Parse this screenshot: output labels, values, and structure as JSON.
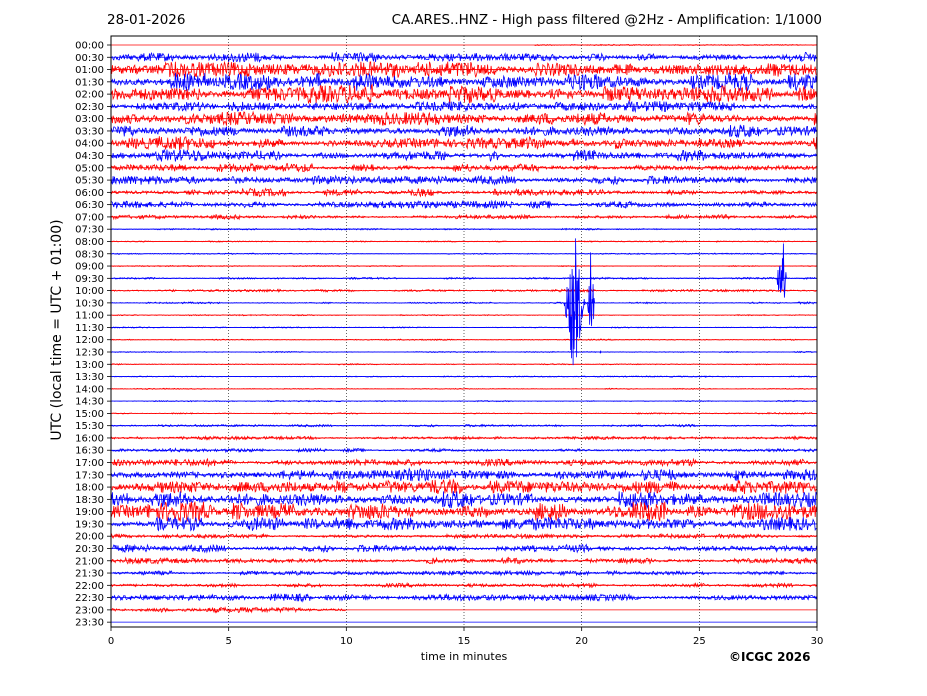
{
  "header": {
    "date": "28-01-2026",
    "title": "CA.ARES..HNZ - High pass filtered @2Hz - Amplification: 1/1000"
  },
  "footer": {
    "copyright": "©ICGC 2026"
  },
  "chart_data": {
    "type": "line",
    "title": "CA.ARES..HNZ - High pass filtered @2Hz - Amplification: 1/1000",
    "xlabel": "time in minutes",
    "ylabel": "UTC (local time = UTC + 01:00)",
    "xlim": [
      0,
      30
    ],
    "x_ticks": [
      0,
      5,
      10,
      15,
      20,
      25,
      30
    ],
    "grid": "vertical dotted lines at x ticks",
    "trace_colors": [
      "#ff0000",
      "#0000ff"
    ],
    "rows": [
      {
        "label": "00:00",
        "noise": 0.5,
        "start": 18
      },
      {
        "label": "00:30",
        "noise": 3.5
      },
      {
        "label": "01:00",
        "noise": 5.5
      },
      {
        "label": "01:30",
        "noise": 6
      },
      {
        "label": "02:00",
        "noise": 6
      },
      {
        "label": "02:30",
        "noise": 3.5
      },
      {
        "label": "03:00",
        "noise": 4.5
      },
      {
        "label": "03:30",
        "noise": 4.5
      },
      {
        "label": "04:00",
        "noise": 4.5
      },
      {
        "label": "04:30",
        "noise": 4
      },
      {
        "label": "05:00",
        "noise": 3
      },
      {
        "label": "05:30",
        "noise": 3
      },
      {
        "label": "06:00",
        "noise": 2.5
      },
      {
        "label": "06:30",
        "noise": 2.5
      },
      {
        "label": "07:00",
        "noise": 1.5
      },
      {
        "label": "07:30",
        "noise": 0.5
      },
      {
        "label": "08:00",
        "noise": 0.4
      },
      {
        "label": "08:30",
        "noise": 0.4
      },
      {
        "label": "09:00",
        "noise": 0.4
      },
      {
        "label": "09:30",
        "noise": 0.6
      },
      {
        "label": "10:00",
        "noise": 0.8
      },
      {
        "label": "10:30",
        "noise": 0.6
      },
      {
        "label": "11:00",
        "noise": 0.4
      },
      {
        "label": "11:30",
        "noise": 0.4
      },
      {
        "label": "12:00",
        "noise": 0.4
      },
      {
        "label": "12:30",
        "noise": 0.4
      },
      {
        "label": "13:00",
        "noise": 0.4
      },
      {
        "label": "13:30",
        "noise": 0.4
      },
      {
        "label": "14:00",
        "noise": 0.4
      },
      {
        "label": "14:30",
        "noise": 0.4
      },
      {
        "label": "15:00",
        "noise": 0.5
      },
      {
        "label": "15:30",
        "noise": 0.8
      },
      {
        "label": "16:00",
        "noise": 1
      },
      {
        "label": "16:30",
        "noise": 1.2
      },
      {
        "label": "17:00",
        "noise": 2.5
      },
      {
        "label": "17:30",
        "noise": 4
      },
      {
        "label": "18:00",
        "noise": 5.5
      },
      {
        "label": "18:30",
        "noise": 6
      },
      {
        "label": "19:00",
        "noise": 6.5
      },
      {
        "label": "19:30",
        "noise": 4.5
      },
      {
        "label": "20:00",
        "noise": 1.5
      },
      {
        "label": "20:30",
        "noise": 2.5
      },
      {
        "label": "21:00",
        "noise": 2
      },
      {
        "label": "21:30",
        "noise": 1.5
      },
      {
        "label": "22:00",
        "noise": 1.5
      },
      {
        "label": "22:30",
        "noise": 2.5
      },
      {
        "label": "23:00",
        "noise": 2,
        "end": 10
      },
      {
        "label": "23:30",
        "noise": 0
      }
    ],
    "events": [
      {
        "row": "10:30",
        "minute": 19.7,
        "amplitude": 80,
        "duration": 0.9,
        "color": "#0000ff"
      },
      {
        "row": "10:30",
        "minute": 20.4,
        "amplitude": 70,
        "duration": 0.3,
        "color": "#0000ff"
      },
      {
        "row": "09:30",
        "minute": 28.5,
        "amplitude": 62,
        "duration": 0.4,
        "color": "#0000ff"
      },
      {
        "row": "12:30",
        "minute": 20.8,
        "amplitude": 2,
        "duration": 0.05,
        "color": "#0000ff"
      }
    ]
  }
}
